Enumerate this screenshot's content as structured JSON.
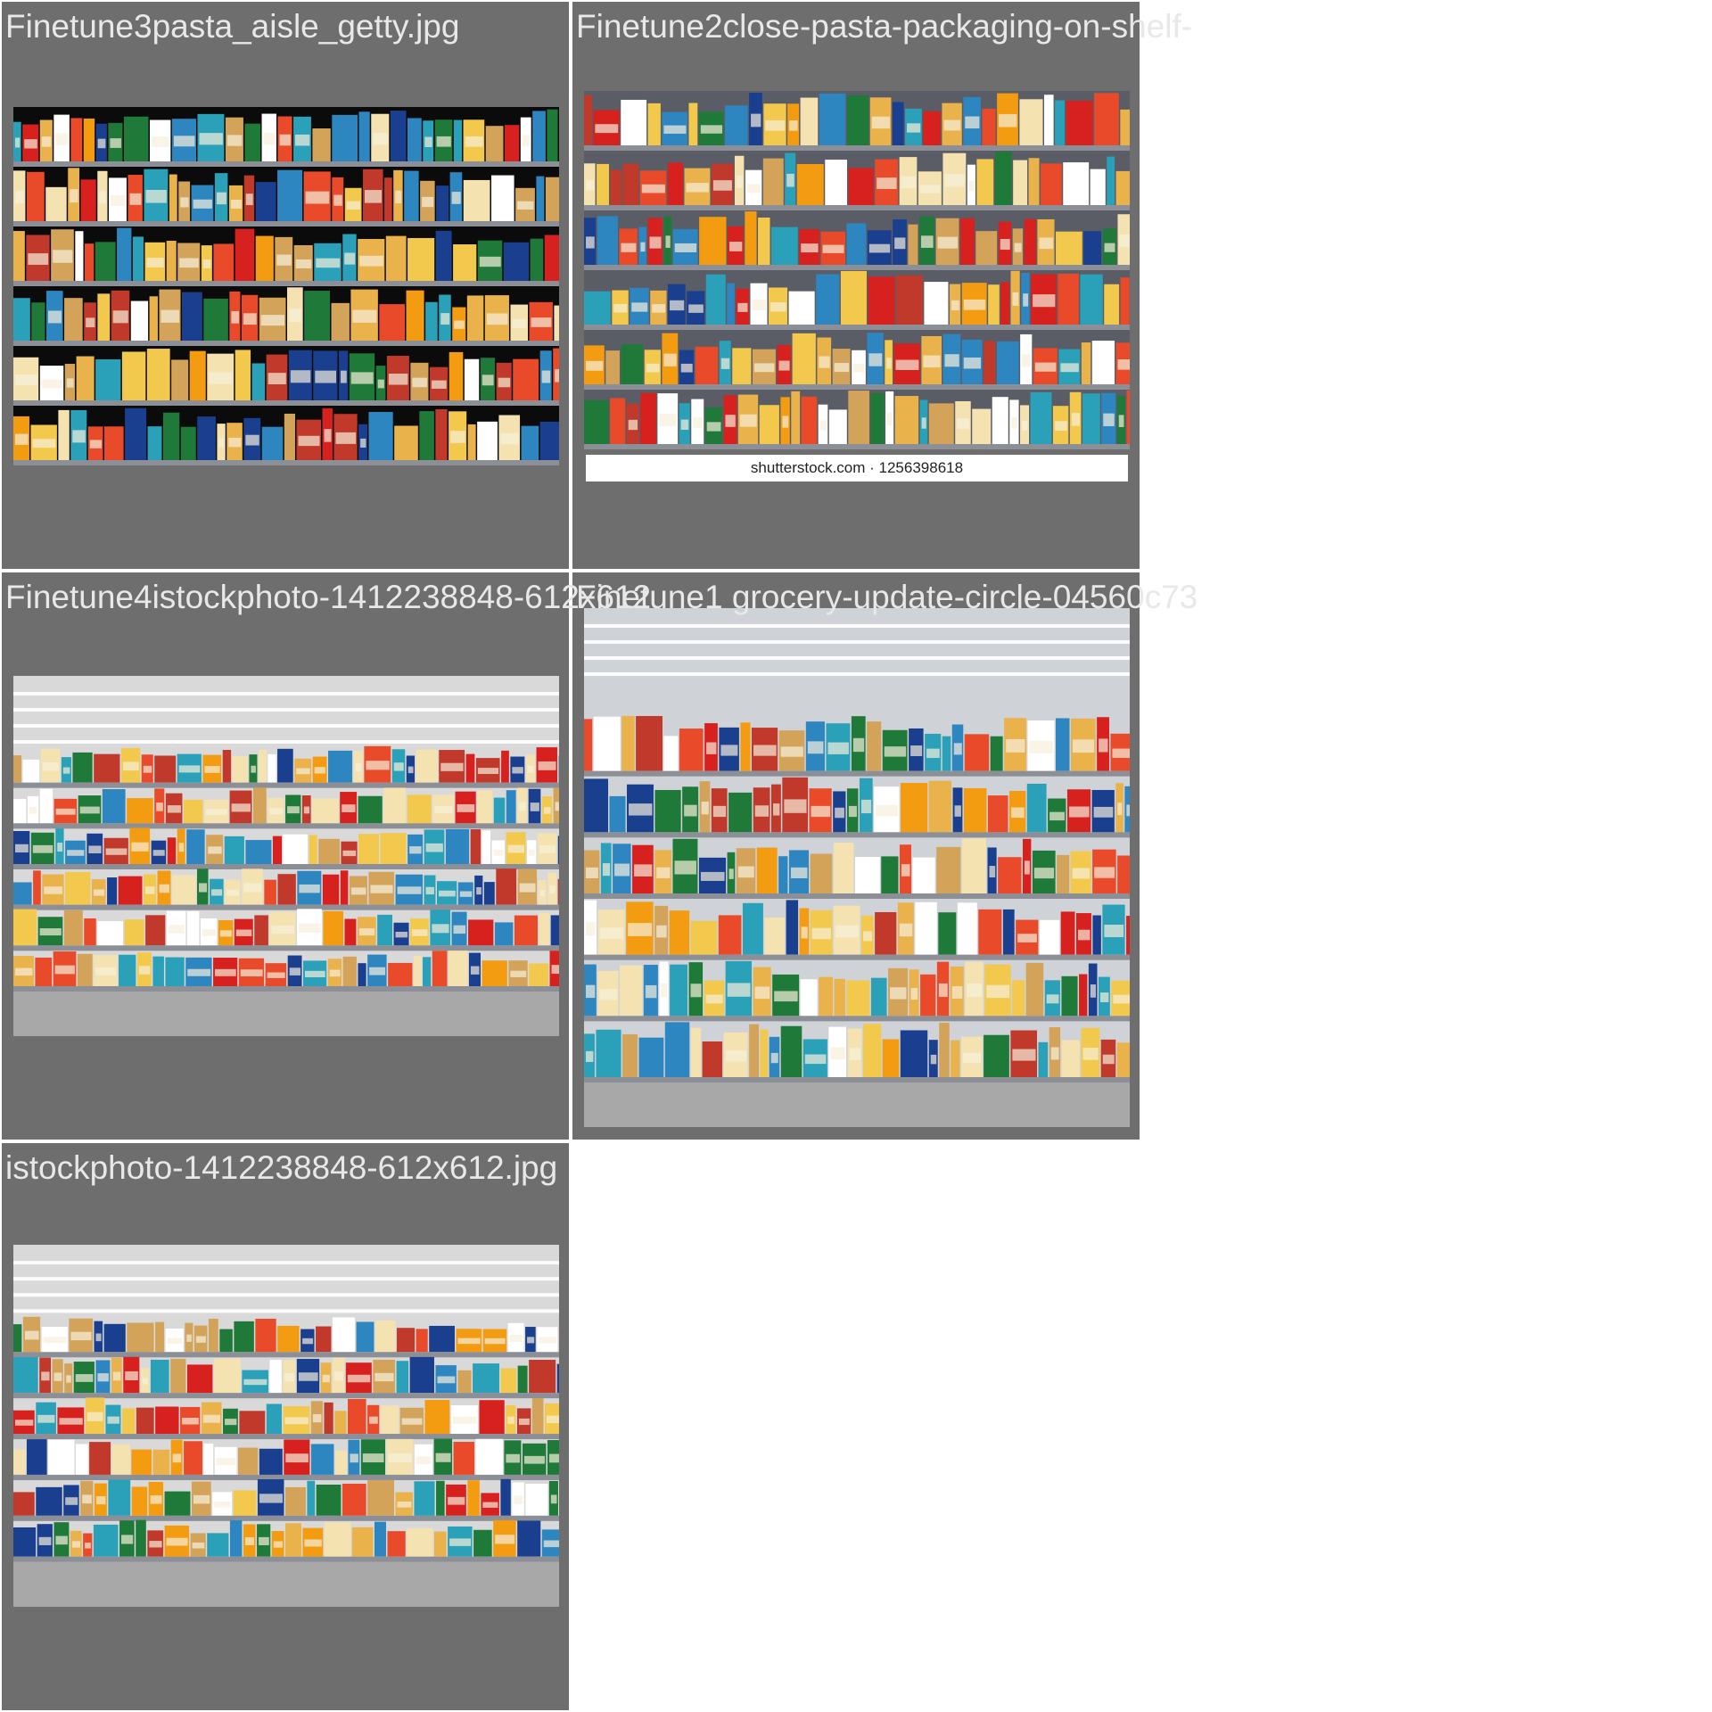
{
  "gallery": {
    "tiles": [
      {
        "caption": "Finetune3pasta_aisle_getty.jpg",
        "image": "pasta-shelves-dark-background"
      },
      {
        "caption": "Finetune2close-pasta-packaging-on-shelf-",
        "image": "pasta-shelves-close",
        "watermark": "shutterstock.com · 1256398618"
      },
      {
        "caption": "Finetune4istockphoto-1412238848-612x612",
        "image": "pasta-aisle-wide"
      },
      {
        "caption": "Finetune1 grocery-update-circle-04560c73",
        "image": "pasta-aisle-ceiling"
      },
      {
        "caption": "istockphoto-1412238848-612x612.jpg",
        "image": "pasta-aisle-wide"
      }
    ]
  },
  "colors": {
    "tile_bg": "#6e6e6e",
    "caption": "#e8e8e8",
    "page_bg": "#ffffff"
  }
}
